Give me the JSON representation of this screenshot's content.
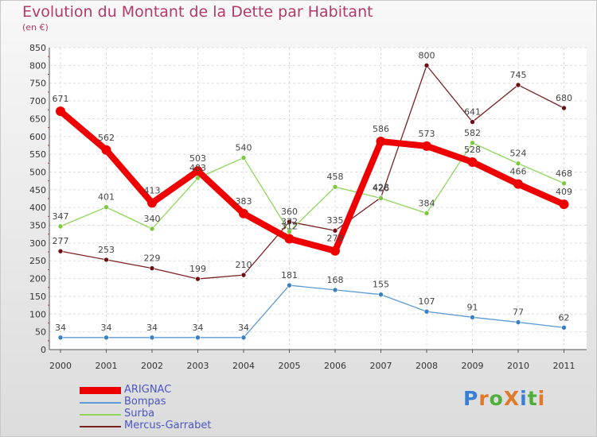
{
  "header": {
    "title": "Evolution du Montant de la Dette par Habitant",
    "subtitle": "(en €)"
  },
  "logo": {
    "text": "ProXiti",
    "letters": [
      "P",
      "r",
      "o",
      "X",
      "i",
      "t",
      "i"
    ],
    "colors": [
      "#3a7fd5",
      "#e0792a",
      "#4fae3c",
      "#e0792a",
      "#3a7fd5",
      "#4fae3c",
      "#e0792a"
    ]
  },
  "chart_data": {
    "type": "line",
    "title": "Evolution du Montant de la Dette par Habitant",
    "ylabel": "(en €)",
    "xlabel": "",
    "x": [
      "2000",
      "2001",
      "2002",
      "2003",
      "2004",
      "2005",
      "2006",
      "2007",
      "2008",
      "2009",
      "2010",
      "2011"
    ],
    "ylim": [
      0,
      850
    ],
    "yticks": [
      0,
      50,
      100,
      150,
      200,
      250,
      300,
      350,
      400,
      450,
      500,
      550,
      600,
      650,
      700,
      750,
      800,
      850
    ],
    "grid": true,
    "legend_position": "bottom-left",
    "series": [
      {
        "name": "ARIGNAC",
        "color": "#ee0000",
        "values": [
          671,
          562,
          413,
          503,
          383,
          312,
          278,
          586,
          573,
          528,
          466,
          409
        ]
      },
      {
        "name": "Bompas",
        "color": "#5b9bd5",
        "values": [
          34,
          34,
          34,
          34,
          34,
          181,
          168,
          155,
          107,
          91,
          77,
          62
        ]
      },
      {
        "name": "Surba",
        "color": "#8fd65a",
        "values": [
          347,
          401,
          340,
          483,
          540,
          332,
          458,
          426,
          384,
          582,
          524,
          468
        ]
      },
      {
        "name": "Mercus-Garrabet",
        "color": "#7a2020",
        "values": [
          277,
          253,
          229,
          199,
          210,
          360,
          335,
          428,
          800,
          641,
          745,
          680
        ]
      }
    ]
  }
}
